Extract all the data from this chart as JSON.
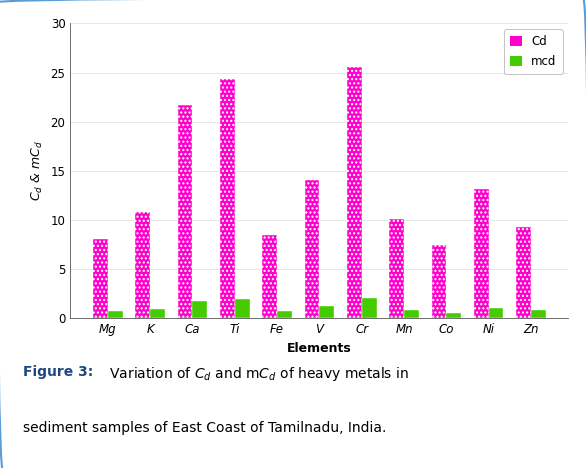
{
  "elements": [
    "Mg",
    "K",
    "Ca",
    "Ti",
    "Fe",
    "V",
    "Cr",
    "Mn",
    "Co",
    "Ni",
    "Zn"
  ],
  "cd_values": [
    8.1,
    10.8,
    21.7,
    24.3,
    8.5,
    14.1,
    25.6,
    10.1,
    7.5,
    13.1,
    9.3
  ],
  "mcd_values": [
    0.7,
    0.9,
    1.8,
    2.0,
    0.7,
    1.2,
    2.1,
    0.8,
    0.5,
    1.0,
    0.8
  ],
  "cd_color": "#FF00CC",
  "mcd_color": "#44CC00",
  "xlabel": "Elements",
  "ylim": [
    0,
    30
  ],
  "yticks": [
    0,
    5,
    10,
    15,
    20,
    25,
    30
  ],
  "legend_cd": "Cd",
  "legend_mcd": "mcd",
  "bar_width": 0.35,
  "background_color": "#ffffff",
  "grid_color": "#aaaaaa",
  "axis_fontsize": 9,
  "tick_fontsize": 8.5,
  "legend_fontsize": 8.5,
  "caption_bold": "Figure 3:",
  "caption_rest": " Variation of C",
  "caption_line2": "sediment samples of East Coast of Tamilnadu, India.",
  "border_color": "#5B9BD5"
}
